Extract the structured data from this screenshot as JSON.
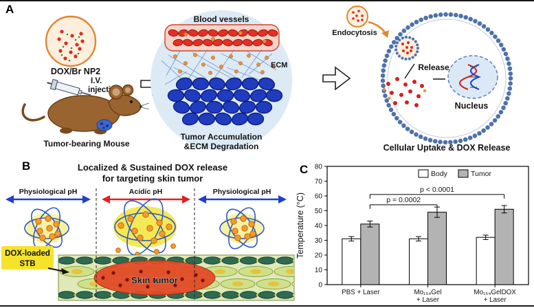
{
  "figure": {
    "panelA": {
      "label": "A",
      "np_label": "DOX/Br NP2",
      "iv_line1": "I.V.",
      "iv_line2": "injection",
      "mouse_label": "Tumor-bearing Mouse",
      "blood_vessels_label": "Blood vessels",
      "ecm_label": "ECM",
      "accumulation_line1": "Tumor Accumulation",
      "accumulation_line2": "&ECM Degradation",
      "endocytosis_label": "Endocytosis",
      "release_label": "Release",
      "nucleus_label": "Nucleus",
      "uptake_caption": "Cellular Uptake & DOX Release"
    },
    "panelB": {
      "label": "B",
      "title_line1": "Localized & Sustained DOX release",
      "title_line2": "for targeting skin tumor",
      "ph_left": "Physiological pH",
      "ph_middle": "Acidic pH",
      "ph_right": "Physiological pH",
      "stb_line1": "DOX-loaded",
      "stb_line2": "STB",
      "skin_tumor_label": "Skin tumor"
    },
    "panelC": {
      "label": "C"
    }
  },
  "chart_data": {
    "type": "bar",
    "title": "",
    "xlabel": "",
    "ylabel": "Temperature (°C)",
    "ylim": [
      0,
      80
    ],
    "yticks": [
      0,
      10,
      20,
      30,
      40,
      50,
      60,
      70,
      80
    ],
    "grid": false,
    "legend_position": "top-right",
    "categories": [
      "PBS + Laser",
      "Mo₁₅₄Gel\n+ Laser",
      "Mo₁₅₄GelDOX\n+ Laser"
    ],
    "series": [
      {
        "name": "Body",
        "color": "#ffffff",
        "values": [
          31,
          31,
          32
        ],
        "errors": [
          1.5,
          1.5,
          1.5
        ]
      },
      {
        "name": "Tumor",
        "color": "#b3b3b3",
        "values": [
          41,
          49,
          51
        ],
        "errors": [
          2.0,
          3.5,
          2.5
        ]
      }
    ],
    "annotations": [
      {
        "text": "p = 0.0002",
        "from_group": 0,
        "to_group": 1,
        "y": 54
      },
      {
        "text": "p < 0.0001",
        "from_group": 0,
        "to_group": 2,
        "y": 61
      }
    ]
  }
}
